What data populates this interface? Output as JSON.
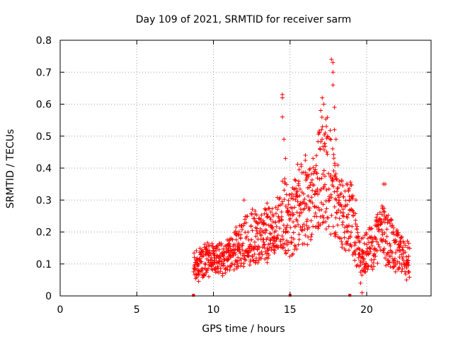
{
  "chart_data": {
    "type": "scatter",
    "title": "Day 109 of 2021, SRMTID for receiver sarm",
    "xlabel": "GPS time / hours",
    "ylabel": "SRMTID / TECUs",
    "xlim": [
      0,
      24.2
    ],
    "ylim": [
      0,
      0.8
    ],
    "x_ticks": [
      {
        "value": 0,
        "label": "0"
      },
      {
        "value": 5,
        "label": "5"
      },
      {
        "value": 10,
        "label": "10"
      },
      {
        "value": 15,
        "label": "15"
      },
      {
        "value": 20,
        "label": "20"
      }
    ],
    "y_ticks": [
      {
        "value": 0,
        "label": "0"
      },
      {
        "value": 0.1,
        "label": "0.1"
      },
      {
        "value": 0.2,
        "label": "0.2"
      },
      {
        "value": 0.3,
        "label": "0.3"
      },
      {
        "value": 0.4,
        "label": "0.4"
      },
      {
        "value": 0.5,
        "label": "0.5"
      },
      {
        "value": 0.6,
        "label": "0.6"
      },
      {
        "value": 0.7,
        "label": "0.7"
      },
      {
        "value": 0.8,
        "label": "0.8"
      }
    ],
    "grid": true,
    "marker": "+",
    "color": "#ff0000",
    "data_range_hours": [
      8.7,
      22.8
    ],
    "baseline_markers": [
      {
        "x": 8.7,
        "y": 0
      },
      {
        "x": 15.0,
        "y": 0
      },
      {
        "x": 18.9,
        "y": 0
      }
    ],
    "envelope": [
      {
        "x": 8.7,
        "y": 0.09
      },
      {
        "x": 9.5,
        "y": 0.11
      },
      {
        "x": 10.5,
        "y": 0.11
      },
      {
        "x": 11.0,
        "y": 0.12
      },
      {
        "x": 11.5,
        "y": 0.15
      },
      {
        "x": 12.0,
        "y": 0.17
      },
      {
        "x": 12.5,
        "y": 0.19
      },
      {
        "x": 13.0,
        "y": 0.17
      },
      {
        "x": 13.5,
        "y": 0.19
      },
      {
        "x": 14.0,
        "y": 0.2
      },
      {
        "x": 14.5,
        "y": 0.26
      },
      {
        "x": 15.0,
        "y": 0.22
      },
      {
        "x": 15.5,
        "y": 0.28
      },
      {
        "x": 16.0,
        "y": 0.3
      },
      {
        "x": 16.5,
        "y": 0.28
      },
      {
        "x": 17.0,
        "y": 0.4
      },
      {
        "x": 17.5,
        "y": 0.38
      },
      {
        "x": 18.0,
        "y": 0.3
      },
      {
        "x": 18.5,
        "y": 0.25
      },
      {
        "x": 19.0,
        "y": 0.25
      },
      {
        "x": 19.5,
        "y": 0.12
      },
      {
        "x": 20.0,
        "y": 0.14
      },
      {
        "x": 20.5,
        "y": 0.16
      },
      {
        "x": 21.0,
        "y": 0.2
      },
      {
        "x": 21.5,
        "y": 0.17
      },
      {
        "x": 22.0,
        "y": 0.14
      },
      {
        "x": 22.5,
        "y": 0.12
      },
      {
        "x": 22.8,
        "y": 0.11
      }
    ],
    "notable_points": [
      {
        "x": 14.5,
        "y": 0.63
      },
      {
        "x": 14.5,
        "y": 0.62
      },
      {
        "x": 14.5,
        "y": 0.56
      },
      {
        "x": 14.6,
        "y": 0.49
      },
      {
        "x": 17.0,
        "y": 0.58
      },
      {
        "x": 17.1,
        "y": 0.62
      },
      {
        "x": 17.2,
        "y": 0.6
      },
      {
        "x": 17.3,
        "y": 0.51
      },
      {
        "x": 17.7,
        "y": 0.74
      },
      {
        "x": 17.8,
        "y": 0.73
      },
      {
        "x": 17.8,
        "y": 0.7
      },
      {
        "x": 17.8,
        "y": 0.66
      },
      {
        "x": 17.9,
        "y": 0.59
      },
      {
        "x": 17.9,
        "y": 0.52
      },
      {
        "x": 18.0,
        "y": 0.49
      },
      {
        "x": 16.0,
        "y": 0.44
      },
      {
        "x": 16.5,
        "y": 0.43
      },
      {
        "x": 14.7,
        "y": 0.43
      },
      {
        "x": 12.0,
        "y": 0.3
      },
      {
        "x": 13.5,
        "y": 0.29
      },
      {
        "x": 19.3,
        "y": 0.3
      },
      {
        "x": 21.1,
        "y": 0.35
      },
      {
        "x": 21.2,
        "y": 0.35
      },
      {
        "x": 19.7,
        "y": 0.01
      },
      {
        "x": 19.6,
        "y": 0.04
      },
      {
        "x": 22.6,
        "y": 0.05
      }
    ]
  }
}
